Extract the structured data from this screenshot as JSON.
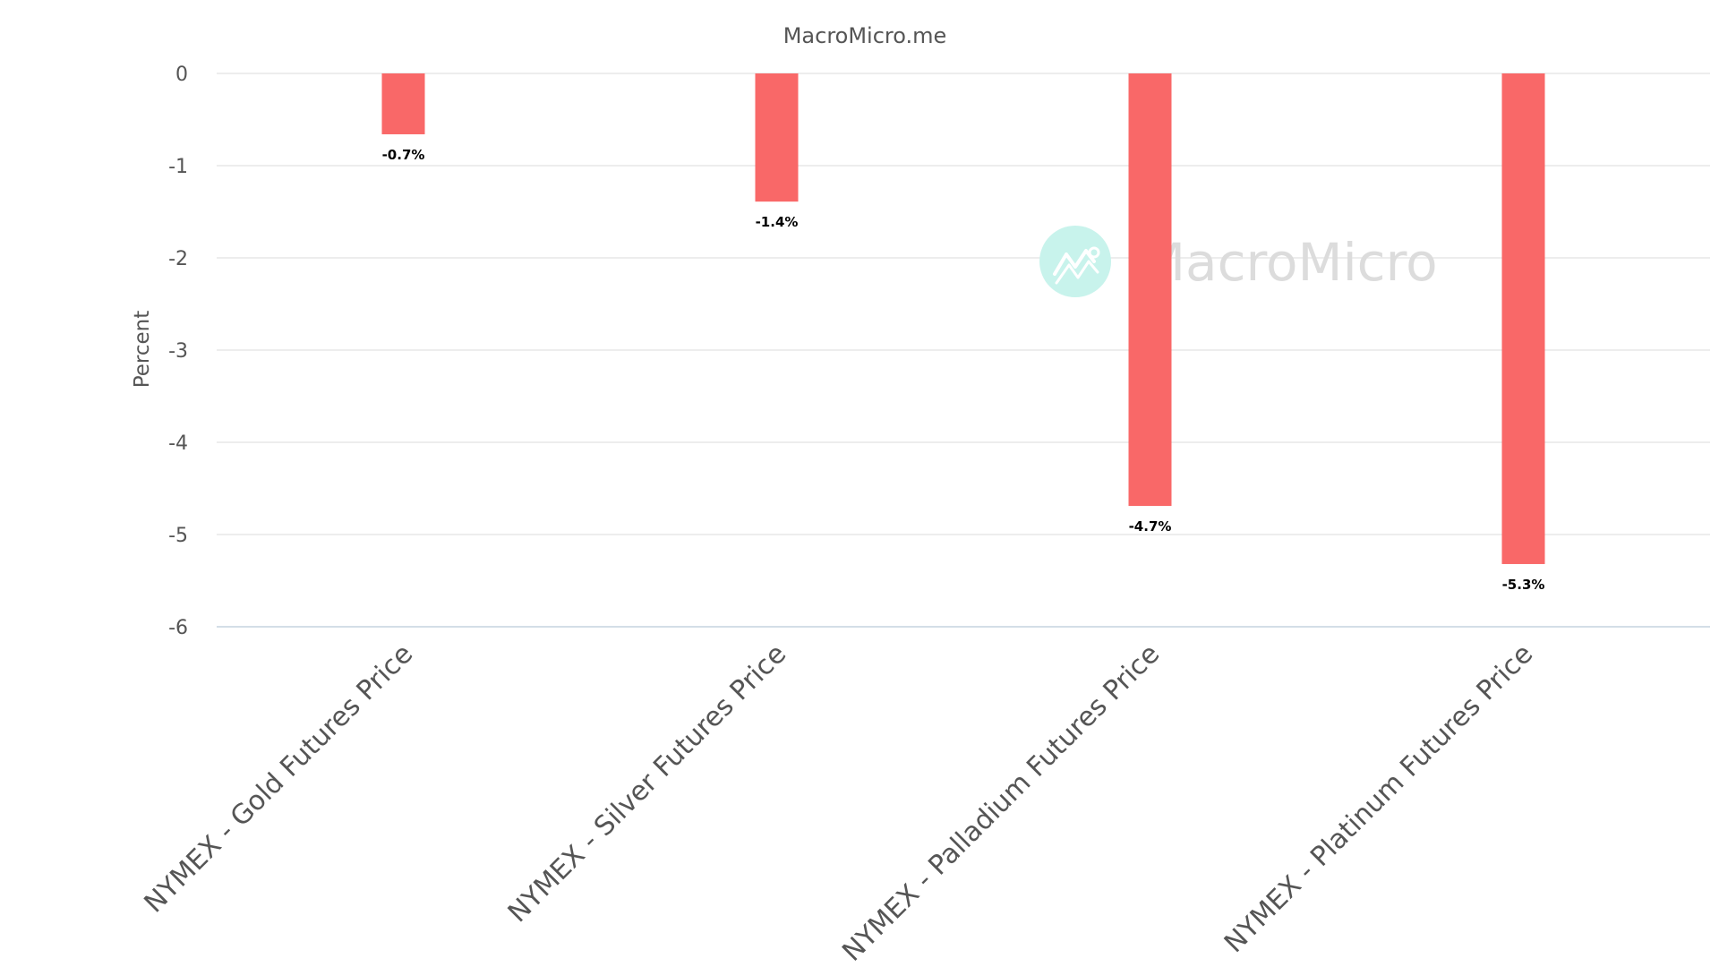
{
  "chart_data": {
    "type": "bar",
    "title": "MacroMicro.me",
    "xlabel": "",
    "ylabel": "Percent",
    "categories": [
      "NYMEX - Gold Futures Price",
      "NYMEX - Silver Futures Price",
      "NYMEX - Palladium Futures Price",
      "NYMEX - Platinum Futures Price"
    ],
    "series": [
      {
        "values": [
          -0.66,
          -1.39,
          -4.69,
          -5.32
        ],
        "data_labels": [
          "-0.7%",
          "-1.4%",
          "-4.7%",
          "-5.3%"
        ],
        "color": "#f96868"
      }
    ],
    "ylim": [
      -6,
      0
    ],
    "yticks": [
      0,
      -1,
      -2,
      -3,
      -4,
      -5,
      -6
    ],
    "grid": true,
    "legend": "none"
  },
  "watermark": {
    "text": "MacroMicro",
    "icon": "macromicro-logo-icon",
    "circle_color": "#c8f3ec",
    "text_color": "#dcdcdc"
  },
  "colors": {
    "bar": "#f96868",
    "grid": "#e2e2e2",
    "baseline": "#c6d3df",
    "text": "#555555"
  }
}
